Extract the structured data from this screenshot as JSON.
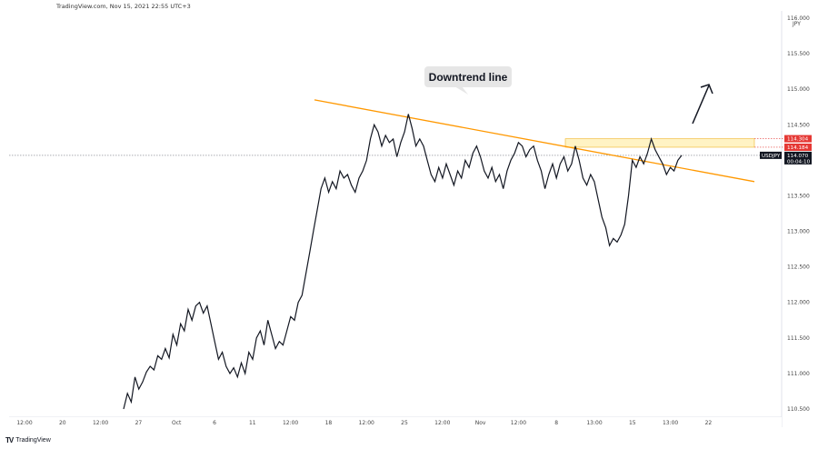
{
  "header": {
    "text": "TradingView.com, Nov 15, 2021 22:55 UTC+3"
  },
  "footer": {
    "logo": "TV",
    "brand": "TradingView"
  },
  "colors": {
    "line": "#131722",
    "trend": "#ff9800",
    "zone_fill": "#fff3c4",
    "zone_border": "#f0b429",
    "resistance": "#e53935",
    "axis_text": "#444444",
    "last_price_bg": "#131722"
  },
  "chart_data": {
    "type": "line",
    "symbol_label": "USDJPY",
    "currency_label": "JPY",
    "ylim": [
      110.5,
      116.0
    ],
    "y_ticks": [
      "116.000",
      "115.500",
      "115.000",
      "114.500",
      "114.000",
      "113.500",
      "113.000",
      "112.500",
      "112.000",
      "111.500",
      "111.000",
      "110.500"
    ],
    "x_ticks": [
      "12:00",
      "20",
      "12:00",
      "27",
      "Oct",
      "6",
      "11",
      "12:00",
      "18",
      "12:00",
      "25",
      "12:00",
      "Nov",
      "12:00",
      "8",
      "13:00",
      "15",
      "13:00",
      "22"
    ],
    "price_tags": [
      {
        "label": "114.304",
        "value": 114.304,
        "bg": "#e53935",
        "fg": "#ffffff"
      },
      {
        "label": "114.184",
        "value": 114.184,
        "bg": "#e53935",
        "fg": "#ffffff"
      },
      {
        "label": "114.070",
        "sub": "00:04:10",
        "value": 114.07,
        "bg": "#131722",
        "fg": "#ffffff"
      }
    ],
    "last_price": 114.07,
    "resistance_zone": [
      114.184,
      114.304
    ],
    "annotation": "Downtrend line",
    "series": [
      {
        "values": [
          110.5,
          110.72,
          110.6,
          110.95,
          110.78,
          110.88,
          111.02,
          111.1,
          111.05,
          111.25,
          111.2,
          111.35,
          111.22,
          111.55,
          111.4,
          111.7,
          111.6,
          111.9,
          111.75,
          111.95,
          112.0,
          111.85,
          111.95,
          111.7,
          111.45,
          111.2,
          111.3,
          111.1,
          111.0,
          111.08,
          110.95,
          111.15,
          111.0,
          111.3,
          111.2,
          111.5,
          111.6,
          111.4,
          111.75,
          111.55,
          111.35,
          111.45,
          111.4,
          111.6,
          111.8,
          111.75,
          112.0,
          112.1,
          112.4,
          112.7,
          113.0,
          113.3,
          113.6,
          113.75,
          113.55,
          113.7,
          113.6,
          113.85,
          113.75,
          113.8,
          113.65,
          113.55,
          113.75,
          113.85,
          114.0,
          114.3,
          114.5,
          114.4,
          114.2,
          114.35,
          114.25,
          114.3,
          114.05,
          114.25,
          114.4,
          114.65,
          114.45,
          114.2,
          114.3,
          114.2,
          114.0,
          113.8,
          113.7,
          113.9,
          113.75,
          113.95,
          113.8,
          113.65,
          113.85,
          113.75,
          114.0,
          113.9,
          114.1,
          114.2,
          114.05,
          113.85,
          113.75,
          113.9,
          113.7,
          113.8,
          113.6,
          113.85,
          114.0,
          114.1,
          114.25,
          114.2,
          114.05,
          114.15,
          114.2,
          114.0,
          113.85,
          113.6,
          113.8,
          113.95,
          113.75,
          113.95,
          114.05,
          113.85,
          113.95,
          114.2,
          114.0,
          113.75,
          113.65,
          113.8,
          113.7,
          113.45,
          113.2,
          113.05,
          112.8,
          112.9,
          112.85,
          112.95,
          113.1,
          113.5,
          114.0,
          113.9,
          114.05,
          113.95,
          114.1,
          114.3,
          114.15,
          114.05,
          113.95,
          113.8,
          113.9,
          113.85,
          114.0,
          114.07
        ]
      }
    ],
    "trend_line": {
      "start": {
        "idx": 0.3,
        "value": 114.85
      },
      "end": {
        "idx": 1.0,
        "value": 113.7
      }
    }
  }
}
